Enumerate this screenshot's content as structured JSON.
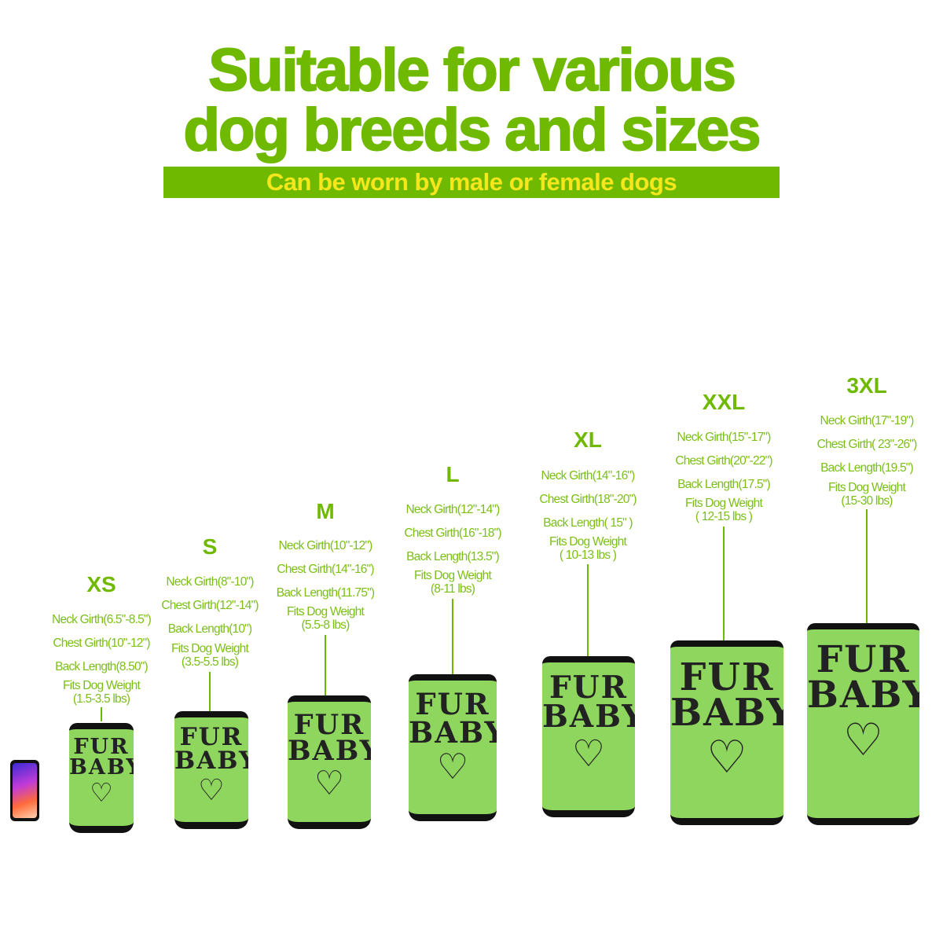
{
  "header": {
    "title_line1": "Suitable for various",
    "title_line2": "dog breeds and sizes",
    "subtitle": "Can be worn by male or female dogs"
  },
  "product_print": {
    "line1": "FUR",
    "line2": "BABY",
    "icon": "heart-icon"
  },
  "colors": {
    "accent": "#6fb900",
    "subtitle_text": "#f6e61c",
    "shirt": "#8fd65f",
    "trim": "#111111"
  },
  "sizes": [
    {
      "label": "XS",
      "neck": "Neck Girth(6.5\"-8.5\")",
      "chest": "Chest Girth(10\"-12\")",
      "back": "Back Length(8.50\")",
      "weight_label": "Fits Dog Weight",
      "weight": "(1.5-3.5 lbs)"
    },
    {
      "label": "S",
      "neck": "Neck Girth(8\"-10\")",
      "chest": "Chest Girth(12\"-14\")",
      "back": "Back Length(10\")",
      "weight_label": "Fits Dog Weight",
      "weight": "(3.5-5.5 lbs)"
    },
    {
      "label": "M",
      "neck": "Neck Girth(10\"-12\")",
      "chest": "Chest Girth(14\"-16\")",
      "back": "Back Length(11.75\")",
      "weight_label": "Fits Dog Weight",
      "weight": "(5.5-8 lbs)"
    },
    {
      "label": "L",
      "neck": "Neck Girth(12\"-14\")",
      "chest": "Chest Girth(16\"-18\")",
      "back": "Back Length(13.5\")",
      "weight_label": "Fits Dog Weight",
      "weight": "(8-11 lbs)"
    },
    {
      "label": "XL",
      "neck": "Neck Girth(14\"-16\")",
      "chest": "Chest Girth(18\"-20\")",
      "back": "Back Length( 15\" )",
      "weight_label": "Fits Dog Weight",
      "weight": "( 10-13 lbs )"
    },
    {
      "label": "XXL",
      "neck": "Neck Girth(15\"-17\")",
      "chest": "Chest Girth(20\"-22\")",
      "back": "Back Length(17.5\")",
      "weight_label": "Fits Dog Weight",
      "weight": "( 12-15 lbs )"
    },
    {
      "label": "3XL",
      "neck": "Neck Girth(17\"-19\")",
      "chest": "Chest Girth( 23\"-26\")",
      "back": "Back Length(19.5\")",
      "weight_label": "Fits Dog Weight",
      "weight": "(15-30 lbs)"
    }
  ]
}
